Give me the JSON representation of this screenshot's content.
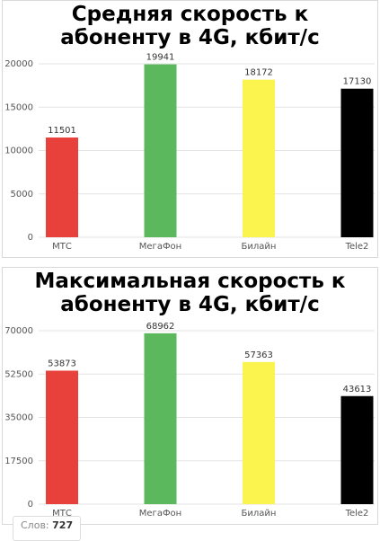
{
  "chart_data": [
    {
      "type": "bar",
      "title": "Средняя скорость к абоненту в 4G, кбит/с",
      "categories": [
        "МТС",
        "МегаФон",
        "Билайн",
        "Tele2"
      ],
      "values": [
        11501,
        19941,
        18172,
        17130
      ],
      "colors": [
        "#e8403a",
        "#5cb85c",
        "#fbf44f",
        "#000000"
      ],
      "ylim": [
        0,
        20000
      ],
      "yticks": [
        0,
        5000,
        10000,
        15000,
        20000
      ],
      "grid": true
    },
    {
      "type": "bar",
      "title": "Максимальная скорость к абоненту в 4G, кбит/с",
      "categories": [
        "МТС",
        "МегаФон",
        "Билайн",
        "Tele2"
      ],
      "values": [
        53873,
        68962,
        57363,
        43613
      ],
      "colors": [
        "#e8403a",
        "#5cb85c",
        "#fbf44f",
        "#000000"
      ],
      "ylim": [
        0,
        70000
      ],
      "yticks": [
        0,
        17500,
        35000,
        52500,
        70000
      ],
      "grid": true
    }
  ],
  "status_bar": {
    "label": "Слов:",
    "value": "727"
  }
}
